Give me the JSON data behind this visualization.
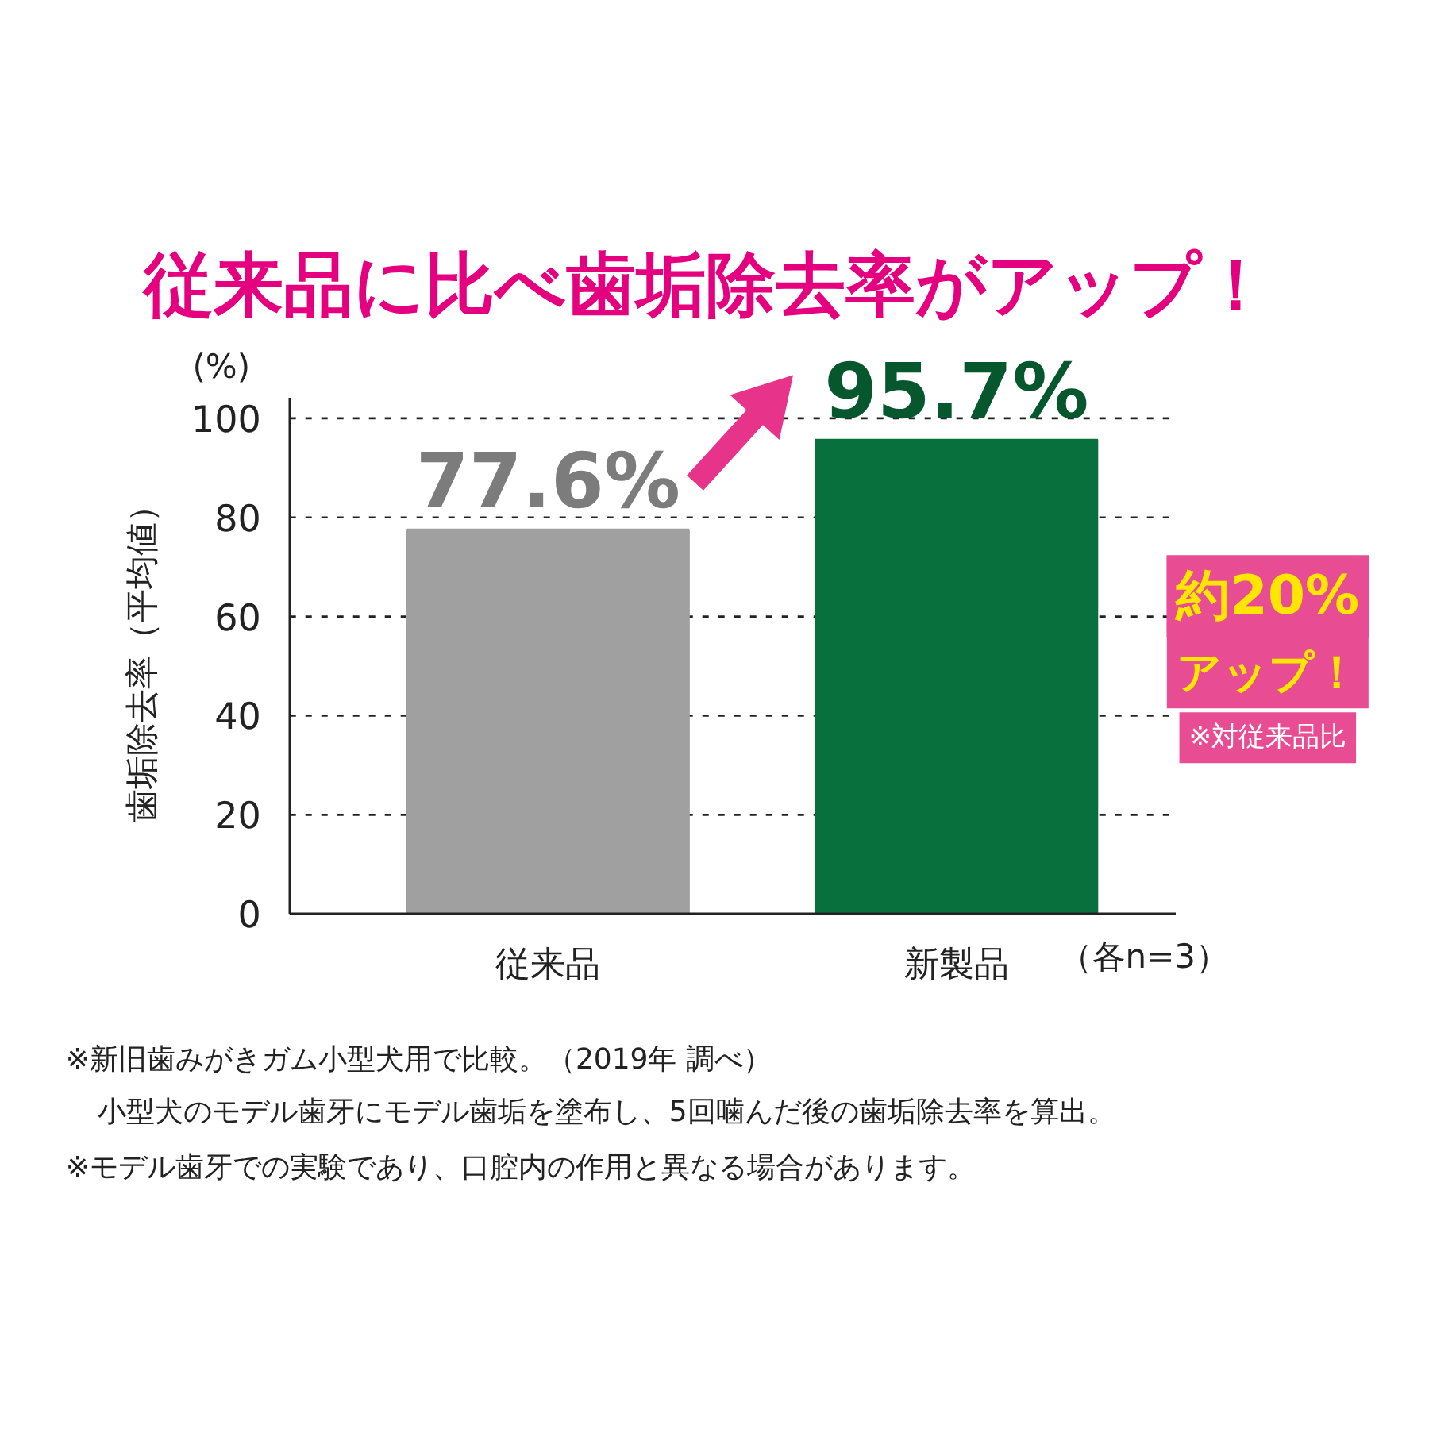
{
  "chart_data": {
    "type": "bar",
    "title": "従来品に比べ歯垢除去率がアップ！",
    "ylabel": "歯垢除去率（平均値）",
    "categories": [
      "従来品",
      "新製品"
    ],
    "values": [
      77.6,
      95.7
    ],
    "colors": [
      "#a0a0a0",
      "#08703c"
    ],
    "value_labels": [
      "77.6%",
      "95.7%"
    ],
    "ylim": [
      0,
      104
    ],
    "yticks": [
      0,
      20,
      40,
      60,
      80,
      100
    ],
    "grid": "y",
    "annotations": [
      "(%)",
      "（各n=3）",
      "約20%",
      "アップ！",
      "※対従来品比",
      "※新旧歯みがきガム小型犬用で比較。（2019年 調べ）",
      "小型犬のモデル歯牙にモデル歯垢を塗布し、5回噛んだ後の歯垢除去率を算出。",
      "※モデル歯牙での実験であり、口腔内の作用と異なる場合があります。"
    ]
  }
}
